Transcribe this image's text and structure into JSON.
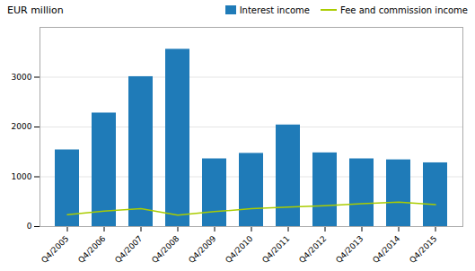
{
  "chart_data": {
    "type": "bar",
    "ylabel": "EUR million",
    "categories": [
      "Q4/2005",
      "Q4/2006",
      "Q4/2007",
      "Q4/2008",
      "Q4/2009",
      "Q4/2010",
      "Q4/2011",
      "Q4/2012",
      "Q4/2013",
      "Q4/2014",
      "Q4/2015"
    ],
    "series": [
      {
        "name": "Interest income",
        "type": "bar",
        "color": "#1f7bb8",
        "values": [
          1540,
          2280,
          3010,
          3560,
          1360,
          1470,
          2040,
          1480,
          1360,
          1340,
          1280
        ]
      },
      {
        "name": "Fee and commission income",
        "type": "line",
        "color": "#aacc00",
        "values": [
          240,
          310,
          360,
          230,
          300,
          360,
          390,
          420,
          460,
          490,
          440
        ]
      }
    ],
    "ylim": [
      0,
      4000
    ],
    "yticks": [
      0,
      1000,
      2000,
      3000
    ],
    "grid": true,
    "legend": "upper right"
  }
}
